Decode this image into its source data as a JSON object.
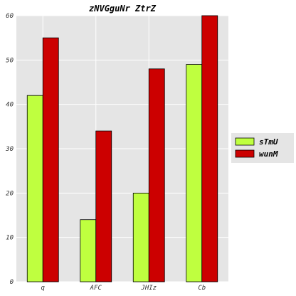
{
  "chart_data": {
    "type": "bar",
    "title": "zNVGguNr ZtrZ",
    "xlabel": "",
    "ylabel": "",
    "categories": [
      "q",
      "AFC",
      "JHIz",
      "Cb"
    ],
    "series": [
      {
        "name": "sTmU",
        "values": [
          42,
          14,
          20,
          49
        ],
        "color": "#bfff3f"
      },
      {
        "name": "wunM",
        "values": [
          55,
          34,
          48,
          60
        ],
        "color": "#cc0000"
      }
    ],
    "ylim": [
      0,
      60
    ],
    "yticks": [
      0,
      10,
      20,
      30,
      40,
      50,
      60
    ],
    "grid": true,
    "legend_position": "right",
    "plot_background": "#e5e5e5",
    "grid_color": "#ffffff"
  }
}
